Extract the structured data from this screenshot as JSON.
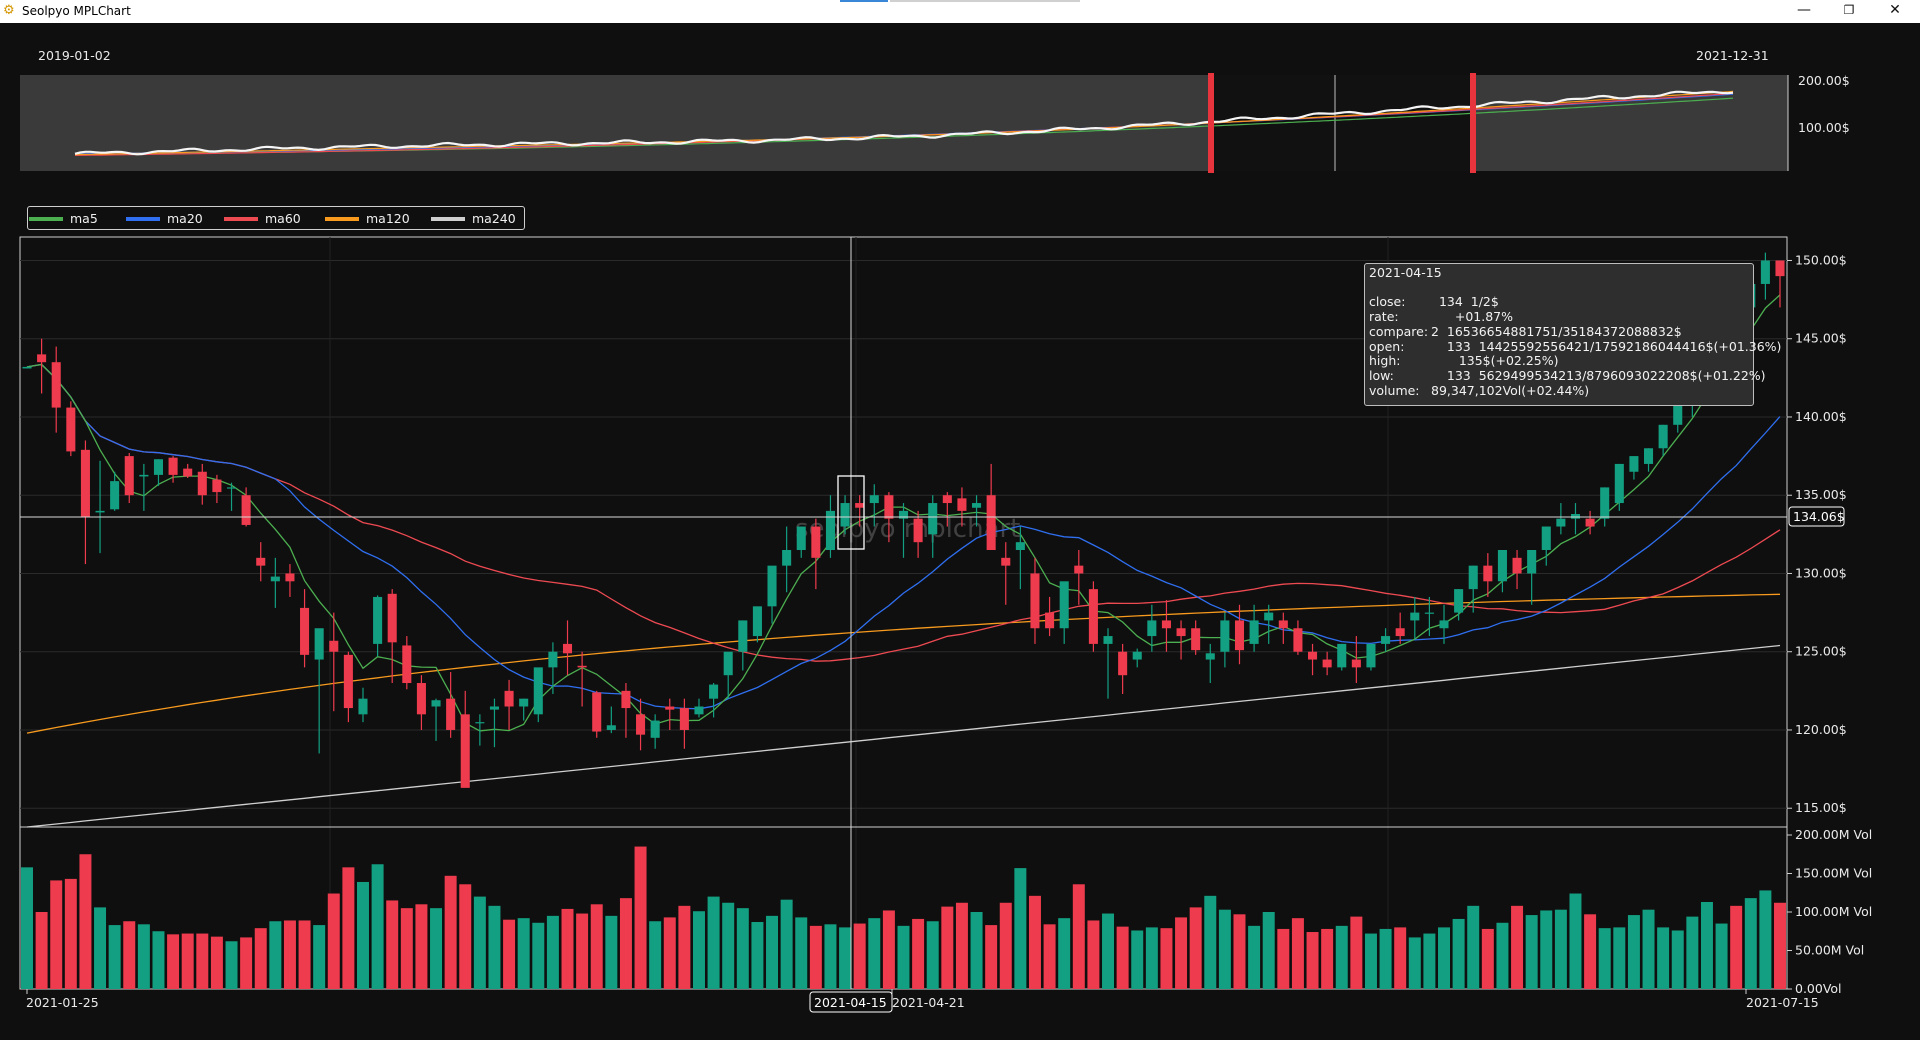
{
  "window": {
    "title": "Seolpyo MPLChart",
    "minimize_glyph": "—",
    "maximize_glyph": "❐",
    "close_glyph": "✕",
    "icon": "app-icon"
  },
  "overview": {
    "start_date": "2019-01-02",
    "end_date": "2021-12-31",
    "y_ticks": [
      "200.00$",
      "100.00$"
    ]
  },
  "legend": [
    {
      "name": "ma5",
      "color": "#4caf50"
    },
    {
      "name": "ma20",
      "color": "#2f6ff0"
    },
    {
      "name": "ma60",
      "color": "#ee4a52"
    },
    {
      "name": "ma120",
      "color": "#f79a1e"
    },
    {
      "name": "ma240",
      "color": "#cfcfcf"
    }
  ],
  "watermark": "seolpyo mplchart",
  "price_axis": [
    "150.00$",
    "145.00$",
    "140.00$",
    "135.00$",
    "130.00$",
    "125.00$",
    "120.00$",
    "115.00$"
  ],
  "volume_axis": [
    "200.00M Vol",
    "150.00M Vol",
    "100.00M Vol",
    "50.00M Vol",
    "0.00Vol"
  ],
  "date_axis": [
    "2021-01-25",
    "2021-04-21",
    "2021-07-15"
  ],
  "crosshair": {
    "date_label": "2021-04-15",
    "price_label": "134.06$"
  },
  "tooltip": {
    "date": "2021-04-15",
    "rows": [
      {
        "label": "close:",
        "value": "  134  1/2$"
      },
      {
        "label": "rate:",
        "value": "      +01.87%"
      },
      {
        "label": "compare:",
        "value": "2  16536654881751/35184372088832$"
      },
      {
        "label": "open:",
        "value": "    133  14425592556421/17592186044416$(+01.36%)"
      },
      {
        "label": "high:",
        "value": "       135$(+02.25%)"
      },
      {
        "label": "low:",
        "value": "    133  5629499534213/8796093022208$(+01.22%)"
      },
      {
        "label": "volume:",
        "value": "89,347,102Vol(+02.44%)"
      }
    ]
  },
  "colors": {
    "up": "#13a082",
    "down": "#ee3b4d",
    "background": "#0f0f0f",
    "overview_bg": "#3a3a3a",
    "marker": "#e8343d"
  },
  "chart_data": {
    "type": "candlestick",
    "price_unit": "$",
    "volume_unit": "Vol",
    "ylim": [
      113.8,
      151.5
    ],
    "volume_ylim": [
      0,
      200000000
    ],
    "x_range": [
      "2021-01-25",
      "2021-07-15"
    ],
    "crosshair_price": 134.06,
    "candles_ohlc": [
      [
        143.1,
        143.2,
        143.1,
        143.2
      ],
      [
        144.0,
        145.0,
        141.5,
        143.5
      ],
      [
        143.5,
        144.5,
        139.0,
        140.6
      ],
      [
        140.6,
        141.0,
        137.5,
        137.8
      ],
      [
        137.9,
        138.5,
        130.6,
        133.6
      ],
      [
        133.9,
        137.2,
        131.3,
        134.0
      ],
      [
        134.1,
        136.5,
        134.0,
        135.9
      ],
      [
        137.5,
        137.7,
        134.5,
        135.0
      ],
      [
        136.2,
        137.0,
        134.0,
        136.3
      ],
      [
        136.3,
        137.3,
        135.6,
        137.3
      ],
      [
        137.4,
        137.5,
        135.8,
        136.3
      ],
      [
        136.7,
        137.0,
        136.1,
        136.2
      ],
      [
        136.5,
        137.0,
        134.4,
        135.0
      ],
      [
        136.0,
        136.3,
        134.5,
        135.2
      ],
      [
        135.5,
        135.8,
        134.0,
        135.5
      ],
      [
        135.0,
        135.5,
        133.0,
        133.1
      ],
      [
        131.0,
        132.0,
        129.5,
        130.5
      ],
      [
        129.5,
        131.0,
        127.8,
        129.8
      ],
      [
        130.0,
        130.6,
        128.5,
        129.5
      ],
      [
        127.8,
        129.0,
        124.0,
        124.8
      ],
      [
        124.5,
        126.0,
        118.5,
        126.5
      ],
      [
        125.7,
        127.5,
        121.2,
        125.0
      ],
      [
        124.8,
        125.0,
        120.5,
        121.4
      ],
      [
        121.0,
        122.7,
        120.5,
        122.0
      ],
      [
        125.5,
        128.6,
        124.7,
        128.5
      ],
      [
        128.7,
        129.0,
        123.0,
        125.6
      ],
      [
        125.4,
        126.0,
        122.6,
        123.0
      ],
      [
        123.0,
        123.5,
        120.0,
        121.0
      ],
      [
        121.5,
        122.0,
        119.3,
        121.9
      ],
      [
        122.0,
        123.7,
        119.5,
        120.0
      ],
      [
        121.0,
        122.5,
        116.4,
        116.3
      ],
      [
        120.5,
        121.0,
        119.0,
        120.5
      ],
      [
        121.3,
        122.0,
        118.9,
        121.5
      ],
      [
        122.5,
        123.2,
        120.0,
        121.5
      ],
      [
        121.5,
        122.0,
        120.6,
        122.0
      ],
      [
        121.0,
        123.5,
        120.5,
        124.0
      ],
      [
        124.0,
        125.6,
        122.3,
        125.0
      ],
      [
        125.5,
        127.0,
        123.5,
        124.9
      ],
      [
        124.1,
        125.0,
        121.5,
        124.0
      ],
      [
        122.4,
        122.5,
        119.5,
        119.9
      ],
      [
        120.0,
        121.5,
        119.8,
        120.3
      ],
      [
        122.5,
        123.0,
        119.5,
        121.4
      ],
      [
        121.0,
        122.0,
        118.7,
        119.7
      ],
      [
        119.5,
        121.0,
        118.8,
        120.6
      ],
      [
        121.5,
        122.0,
        120.0,
        121.3
      ],
      [
        121.4,
        122.0,
        118.8,
        120.0
      ],
      [
        121.0,
        122.0,
        120.8,
        121.5
      ],
      [
        122.0,
        123.0,
        120.8,
        122.9
      ],
      [
        123.5,
        124.5,
        122.0,
        125.0
      ],
      [
        125.0,
        127.0,
        123.8,
        127.0
      ],
      [
        126.0,
        127.5,
        125.6,
        127.9
      ],
      [
        127.9,
        130.0,
        126.8,
        130.5
      ],
      [
        130.5,
        133.0,
        128.8,
        131.5
      ],
      [
        131.5,
        133.0,
        131.0,
        133.0
      ],
      [
        133.0,
        133.5,
        129.0,
        131.0
      ],
      [
        131.5,
        135.0,
        131.0,
        134.0
      ],
      [
        133.0,
        135.0,
        132.5,
        134.5
      ],
      [
        134.5,
        135.0,
        133.0,
        134.2
      ],
      [
        134.5,
        135.7,
        133.0,
        135.0
      ],
      [
        135.0,
        135.2,
        132.0,
        133.5
      ],
      [
        133.5,
        134.5,
        131.0,
        134.0
      ],
      [
        133.5,
        134.0,
        131.0,
        132.0
      ],
      [
        132.5,
        135.0,
        131.0,
        134.5
      ],
      [
        135.0,
        135.2,
        133.0,
        134.5
      ],
      [
        134.8,
        135.5,
        133.0,
        134.0
      ],
      [
        134.2,
        135.0,
        133.0,
        134.5
      ],
      [
        135.0,
        137.0,
        131.9,
        131.5
      ],
      [
        131.0,
        132.0,
        128.0,
        130.5
      ],
      [
        131.5,
        133.0,
        129.0,
        132.0
      ],
      [
        130.0,
        131.0,
        125.5,
        126.5
      ],
      [
        127.5,
        128.5,
        126.0,
        126.5
      ],
      [
        126.5,
        129.0,
        125.5,
        129.5
      ],
      [
        130.5,
        131.5,
        128.0,
        130.0
      ],
      [
        129.0,
        129.5,
        125.0,
        125.5
      ],
      [
        125.5,
        126.5,
        122.0,
        126.0
      ],
      [
        125.0,
        125.5,
        122.3,
        123.5
      ],
      [
        124.5,
        125.2,
        124.0,
        125.0
      ],
      [
        126.0,
        128.0,
        125.0,
        127.0
      ],
      [
        127.0,
        128.3,
        125.0,
        126.5
      ],
      [
        126.5,
        127.0,
        124.5,
        126.0
      ],
      [
        126.5,
        127.0,
        124.8,
        125.1
      ],
      [
        124.5,
        125.5,
        123.0,
        124.9
      ],
      [
        125.0,
        127.5,
        124.0,
        127.0
      ],
      [
        127.0,
        128.0,
        124.2,
        125.1
      ],
      [
        125.5,
        128.0,
        125.0,
        127.0
      ],
      [
        127.0,
        128.0,
        125.5,
        127.5
      ],
      [
        127.0,
        127.5,
        125.5,
        126.5
      ],
      [
        126.5,
        127.0,
        124.8,
        125.0
      ],
      [
        125.0,
        125.5,
        123.5,
        124.5
      ],
      [
        124.5,
        125.0,
        123.5,
        124.0
      ],
      [
        124.0,
        125.5,
        123.8,
        125.5
      ],
      [
        124.5,
        126.0,
        123.0,
        124.0
      ],
      [
        124.0,
        125.5,
        123.8,
        125.5
      ],
      [
        125.5,
        126.5,
        125.0,
        126.0
      ],
      [
        126.5,
        127.5,
        125.5,
        126.0
      ],
      [
        127.0,
        128.5,
        125.8,
        127.5
      ],
      [
        127.5,
        128.5,
        126.0,
        127.5
      ],
      [
        126.5,
        128.0,
        125.5,
        127.0
      ],
      [
        127.5,
        129.0,
        127.0,
        129.0
      ],
      [
        129.0,
        130.5,
        127.5,
        130.5
      ],
      [
        130.5,
        131.3,
        128.5,
        129.5
      ],
      [
        129.5,
        131.5,
        128.8,
        131.5
      ],
      [
        131.0,
        131.5,
        129.0,
        130.0
      ],
      [
        130.0,
        131.5,
        128.0,
        131.5
      ],
      [
        131.5,
        133.0,
        130.5,
        133.0
      ],
      [
        133.0,
        134.5,
        132.5,
        133.5
      ],
      [
        133.5,
        134.5,
        132.5,
        133.8
      ],
      [
        133.5,
        134.0,
        132.5,
        133.0
      ],
      [
        133.5,
        135.5,
        133.0,
        135.5
      ],
      [
        134.5,
        137.0,
        134.0,
        137.0
      ],
      [
        136.5,
        137.0,
        136.0,
        137.5
      ],
      [
        137.0,
        138.0,
        136.5,
        138.0
      ],
      [
        138.0,
        139.5,
        137.5,
        139.5
      ],
      [
        139.5,
        142.0,
        139.0,
        141.5
      ],
      [
        141.5,
        143.5,
        140.0,
        143.0
      ],
      [
        142.5,
        145.0,
        142.0,
        144.8
      ],
      [
        145.5,
        146.0,
        144.5,
        146.0
      ],
      [
        146.0,
        146.5,
        145.0,
        145.5
      ],
      [
        147.0,
        149.0,
        146.5,
        148.5
      ],
      [
        148.5,
        150.5,
        147.5,
        150.0
      ],
      [
        150.0,
        150.0,
        147.0,
        149.0
      ]
    ],
    "volumes_m": [
      158,
      100,
      141,
      143,
      175,
      106,
      83,
      88,
      84,
      75,
      71,
      72,
      72,
      68,
      62,
      67,
      79,
      88,
      89,
      89,
      83,
      124,
      158,
      139,
      162,
      115,
      105,
      110,
      105,
      147,
      136,
      120,
      108,
      90,
      92,
      86,
      95,
      104,
      98,
      110,
      95,
      118,
      185,
      88,
      93,
      108,
      101,
      120,
      112,
      105,
      87,
      95,
      116,
      93,
      82,
      84,
      80,
      85,
      92,
      102,
      82,
      91,
      88,
      107,
      112,
      100,
      83,
      112,
      157,
      121,
      84,
      92,
      136,
      89,
      98,
      81,
      76,
      80,
      79,
      93,
      106,
      121,
      103,
      97,
      82,
      100,
      78,
      92,
      74,
      78,
      82,
      94,
      72,
      78,
      80,
      67,
      72,
      80,
      91,
      108,
      78,
      86,
      108,
      96,
      102,
      103,
      124,
      97,
      79,
      80,
      96,
      103,
      80,
      76,
      94,
      113,
      85,
      108,
      118,
      128,
      112,
      100
    ],
    "overview_markers_x": [
      1210,
      1476
    ],
    "overview_vline_x": 1335
  }
}
